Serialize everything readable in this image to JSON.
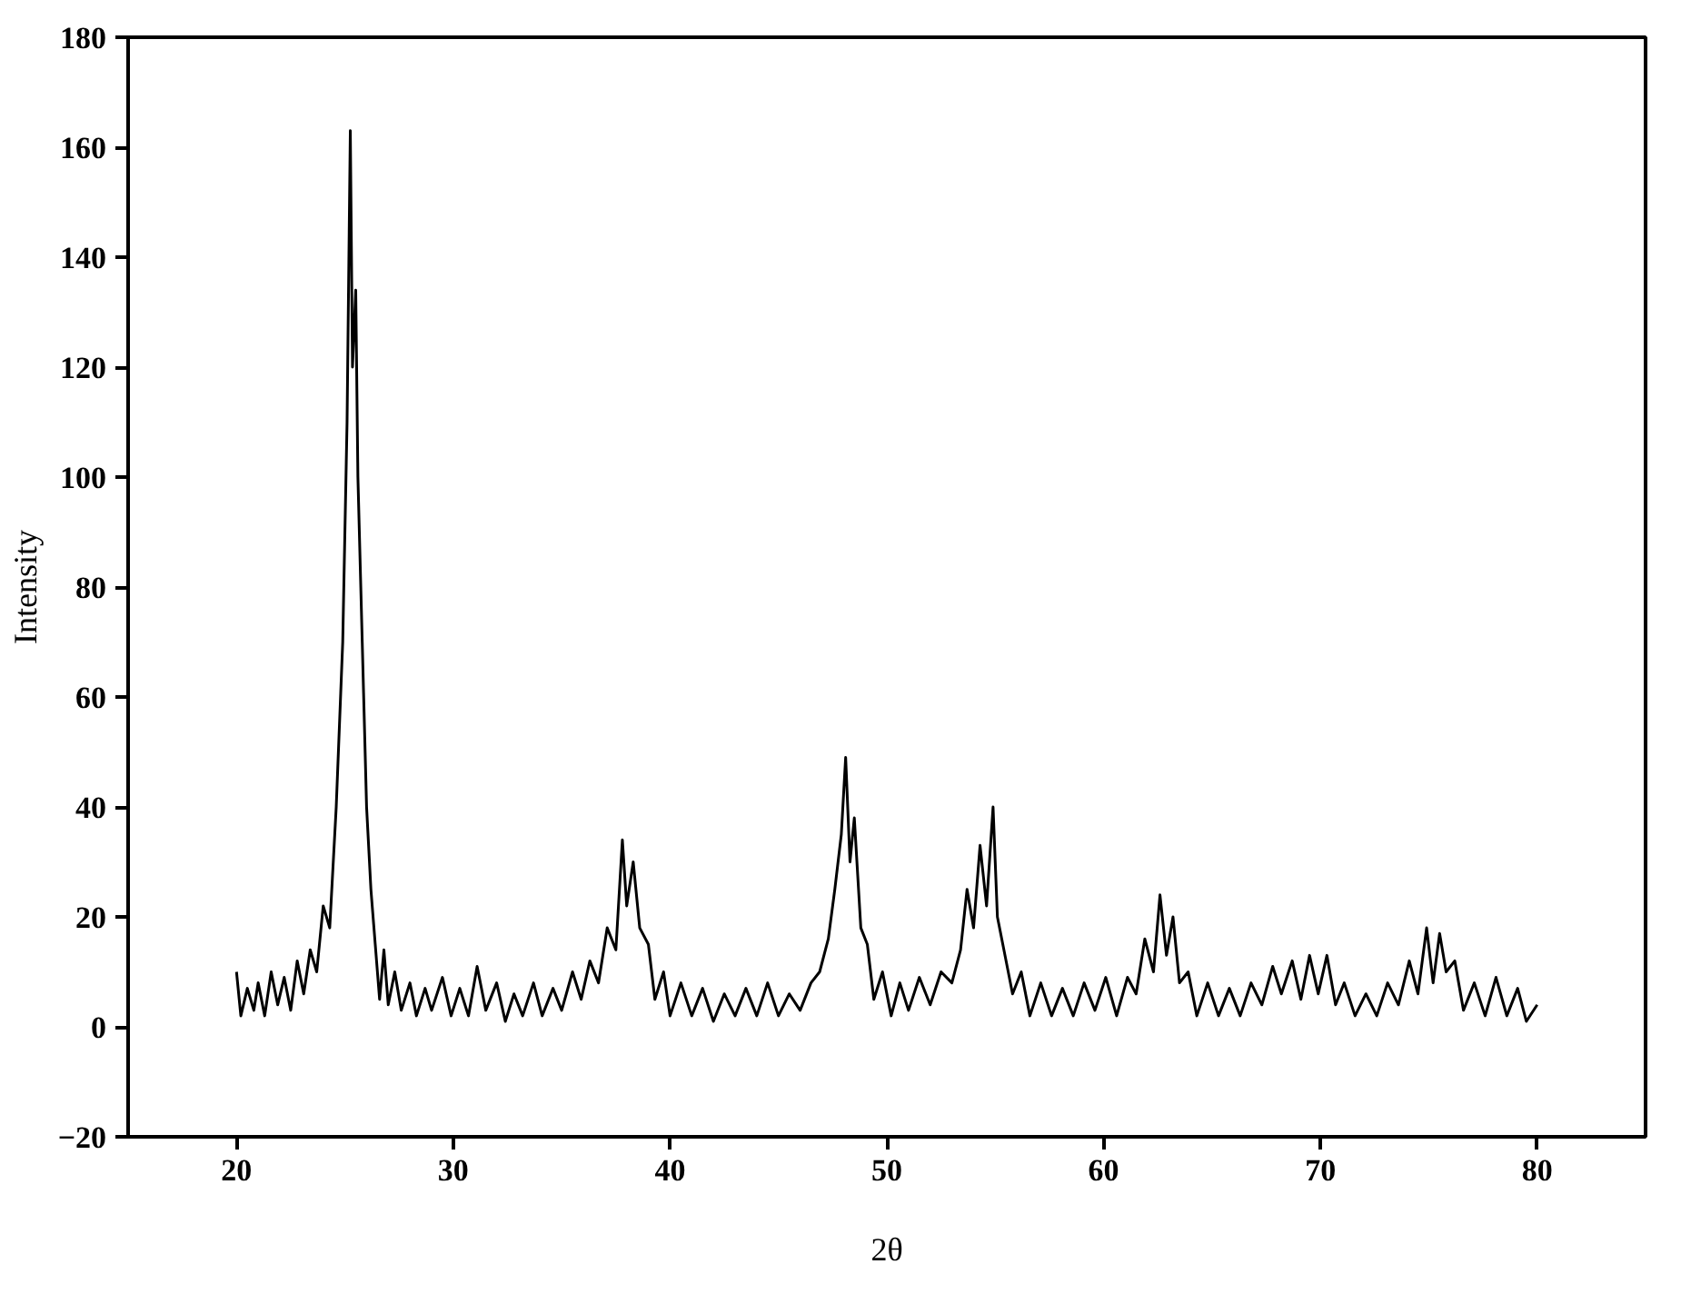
{
  "chart_data": {
    "type": "line",
    "xlabel": "2θ",
    "ylabel": "Intensity",
    "xlim": [
      15,
      85
    ],
    "ylim": [
      -20,
      180
    ],
    "xticks": [
      20,
      30,
      40,
      50,
      60,
      70,
      80
    ],
    "yticks": [
      -20,
      0,
      20,
      40,
      60,
      80,
      100,
      120,
      140,
      160,
      180
    ],
    "grid": false,
    "marker": "none",
    "line_style": "solid",
    "x": [
      20.0,
      20.2,
      20.5,
      20.8,
      21.0,
      21.3,
      21.6,
      21.9,
      22.2,
      22.5,
      22.8,
      23.1,
      23.4,
      23.7,
      24.0,
      24.3,
      24.6,
      24.9,
      25.1,
      25.25,
      25.35,
      25.5,
      25.6,
      25.8,
      26.0,
      26.2,
      26.4,
      26.6,
      26.8,
      27.0,
      27.3,
      27.6,
      28.0,
      28.3,
      28.7,
      29.0,
      29.5,
      29.9,
      30.3,
      30.7,
      31.1,
      31.5,
      32.0,
      32.4,
      32.8,
      33.2,
      33.7,
      34.1,
      34.6,
      35.0,
      35.5,
      35.9,
      36.3,
      36.7,
      37.1,
      37.5,
      37.8,
      38.0,
      38.3,
      38.6,
      39.0,
      39.3,
      39.7,
      40.0,
      40.5,
      41.0,
      41.5,
      42.0,
      42.5,
      43.0,
      43.5,
      44.0,
      44.5,
      45.0,
      45.5,
      46.0,
      46.5,
      46.9,
      47.3,
      47.6,
      47.9,
      48.1,
      48.3,
      48.5,
      48.8,
      49.1,
      49.4,
      49.8,
      50.2,
      50.6,
      51.0,
      51.5,
      52.0,
      52.5,
      53.0,
      53.4,
      53.7,
      54.0,
      54.3,
      54.6,
      54.9,
      55.1,
      55.4,
      55.8,
      56.2,
      56.6,
      57.1,
      57.6,
      58.1,
      58.6,
      59.1,
      59.6,
      60.1,
      60.6,
      61.1,
      61.5,
      61.9,
      62.3,
      62.6,
      62.9,
      63.2,
      63.5,
      63.9,
      64.3,
      64.8,
      65.3,
      65.8,
      66.3,
      66.8,
      67.3,
      67.8,
      68.2,
      68.7,
      69.1,
      69.5,
      69.9,
      70.3,
      70.7,
      71.1,
      71.6,
      72.1,
      72.6,
      73.1,
      73.6,
      74.1,
      74.5,
      74.9,
      75.2,
      75.5,
      75.8,
      76.2,
      76.6,
      77.1,
      77.6,
      78.1,
      78.6,
      79.1,
      79.5,
      80.0
    ],
    "series": [
      {
        "color": "#000000",
        "values": [
          10,
          2,
          7,
          3,
          8,
          2,
          10,
          4,
          9,
          3,
          12,
          6,
          14,
          10,
          22,
          18,
          40,
          70,
          110,
          163,
          120,
          134,
          100,
          70,
          40,
          25,
          15,
          5,
          14,
          4,
          10,
          3,
          8,
          2,
          7,
          3,
          9,
          2,
          7,
          2,
          11,
          3,
          8,
          1,
          6,
          2,
          8,
          2,
          7,
          3,
          10,
          5,
          12,
          8,
          18,
          14,
          34,
          22,
          30,
          18,
          15,
          5,
          10,
          2,
          8,
          2,
          7,
          1,
          6,
          2,
          7,
          2,
          8,
          2,
          6,
          3,
          8,
          10,
          16,
          25,
          35,
          49,
          30,
          38,
          18,
          15,
          5,
          10,
          2,
          8,
          3,
          9,
          4,
          10,
          8,
          14,
          25,
          18,
          33,
          22,
          40,
          20,
          14,
          6,
          10,
          2,
          8,
          2,
          7,
          2,
          8,
          3,
          9,
          2,
          9,
          6,
          16,
          10,
          24,
          13,
          20,
          8,
          10,
          2,
          8,
          2,
          7,
          2,
          8,
          4,
          11,
          6,
          12,
          5,
          13,
          6,
          13,
          4,
          8,
          2,
          6,
          2,
          8,
          4,
          12,
          6,
          18,
          8,
          17,
          10,
          12,
          3,
          8,
          2,
          9,
          2,
          7,
          1,
          4
        ]
      }
    ]
  }
}
